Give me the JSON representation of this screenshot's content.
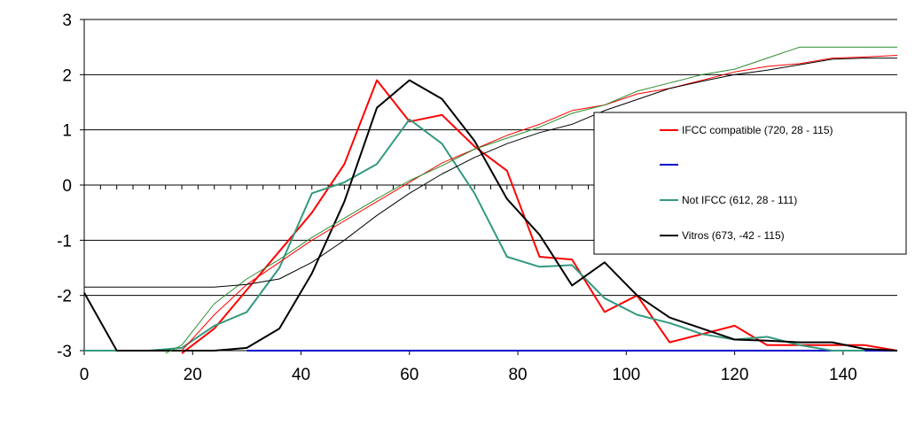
{
  "chart_data": {
    "type": "line",
    "title": "",
    "xlabel": "",
    "ylabel": "",
    "xlim": [
      0,
      150
    ],
    "ylim": [
      -3,
      3
    ],
    "x_ticks": [
      0,
      20,
      40,
      60,
      80,
      100,
      120,
      140
    ],
    "y_ticks": [
      -3,
      -2,
      -1,
      0,
      1,
      2,
      3
    ],
    "minor_x_tick_step": 3,
    "grid": "horizontal",
    "legend_position": "right",
    "series": [
      {
        "name": "IFCC compatible (720, 28 - 115)",
        "color": "#ff0000",
        "kind": "frequency",
        "points": [
          [
            18,
            -3.05
          ],
          [
            24,
            -2.6
          ],
          [
            30,
            -1.9
          ],
          [
            36,
            -1.2
          ],
          [
            42,
            -0.5
          ],
          [
            48,
            0.38
          ],
          [
            54,
            1.9
          ],
          [
            60,
            1.15
          ],
          [
            66,
            1.27
          ],
          [
            72,
            0.7
          ],
          [
            78,
            0.26
          ],
          [
            84,
            -1.3
          ],
          [
            90,
            -1.35
          ],
          [
            96,
            -2.3
          ],
          [
            102,
            -2.0
          ],
          [
            108,
            -2.85
          ],
          [
            114,
            -2.7
          ],
          [
            120,
            -2.55
          ],
          [
            126,
            -2.9
          ],
          [
            132,
            -2.9
          ],
          [
            138,
            -2.9
          ],
          [
            144,
            -2.9
          ],
          [
            150,
            -3.0
          ]
        ]
      },
      {
        "name": "",
        "color": "#0000cc",
        "kind": "frequency",
        "points": [
          [
            30,
            -3.0
          ],
          [
            150,
            -3.0
          ]
        ]
      },
      {
        "name": "Not IFCC (612, 28 - 111)",
        "color": "#339980",
        "kind": "frequency",
        "points": [
          [
            0,
            -3.0
          ],
          [
            12,
            -3.0
          ],
          [
            18,
            -2.95
          ],
          [
            24,
            -2.55
          ],
          [
            30,
            -2.3
          ],
          [
            36,
            -1.5
          ],
          [
            42,
            -0.15
          ],
          [
            48,
            0.05
          ],
          [
            54,
            0.38
          ],
          [
            60,
            1.19
          ],
          [
            66,
            0.75
          ],
          [
            72,
            -0.15
          ],
          [
            78,
            -1.3
          ],
          [
            84,
            -1.48
          ],
          [
            90,
            -1.45
          ],
          [
            96,
            -2.05
          ],
          [
            102,
            -2.35
          ],
          [
            108,
            -2.5
          ],
          [
            114,
            -2.7
          ],
          [
            120,
            -2.8
          ],
          [
            126,
            -2.75
          ],
          [
            132,
            -2.9
          ],
          [
            138,
            -3.0
          ],
          [
            144,
            -3.0
          ]
        ]
      },
      {
        "name": "Vitros (673, -42 - 115)",
        "color": "#000000",
        "kind": "frequency",
        "points": [
          [
            0,
            -1.95
          ],
          [
            6,
            -3.0
          ],
          [
            24,
            -3.0
          ],
          [
            30,
            -2.95
          ],
          [
            36,
            -2.6
          ],
          [
            42,
            -1.6
          ],
          [
            48,
            -0.3
          ],
          [
            54,
            1.4
          ],
          [
            60,
            1.9
          ],
          [
            66,
            1.56
          ],
          [
            72,
            0.8
          ],
          [
            78,
            -0.25
          ],
          [
            84,
            -0.9
          ],
          [
            90,
            -1.82
          ],
          [
            96,
            -1.4
          ],
          [
            102,
            -2.0
          ],
          [
            108,
            -2.4
          ],
          [
            114,
            -2.6
          ],
          [
            120,
            -2.8
          ],
          [
            126,
            -2.82
          ],
          [
            132,
            -2.85
          ],
          [
            138,
            -2.85
          ],
          [
            144,
            -2.97
          ],
          [
            150,
            -3.0
          ]
        ]
      },
      {
        "name": "",
        "color": "#ff0000",
        "kind": "cumulative",
        "points": [
          [
            18,
            -3.0
          ],
          [
            24,
            -2.35
          ],
          [
            30,
            -1.8
          ],
          [
            36,
            -1.4
          ],
          [
            42,
            -1.0
          ],
          [
            48,
            -0.65
          ],
          [
            54,
            -0.3
          ],
          [
            60,
            0.05
          ],
          [
            66,
            0.4
          ],
          [
            72,
            0.65
          ],
          [
            78,
            0.9
          ],
          [
            84,
            1.1
          ],
          [
            90,
            1.35
          ],
          [
            96,
            1.45
          ],
          [
            102,
            1.65
          ],
          [
            108,
            1.75
          ],
          [
            114,
            1.9
          ],
          [
            120,
            2.05
          ],
          [
            126,
            2.15
          ],
          [
            132,
            2.2
          ],
          [
            138,
            2.3
          ],
          [
            144,
            2.32
          ],
          [
            150,
            2.35
          ]
        ]
      },
      {
        "name": "",
        "color": "#2e8b2e",
        "kind": "cumulative",
        "points": [
          [
            15,
            -3.05
          ],
          [
            18,
            -2.9
          ],
          [
            24,
            -2.15
          ],
          [
            30,
            -1.7
          ],
          [
            36,
            -1.35
          ],
          [
            42,
            -0.95
          ],
          [
            48,
            -0.6
          ],
          [
            54,
            -0.25
          ],
          [
            60,
            0.08
          ],
          [
            66,
            0.35
          ],
          [
            72,
            0.65
          ],
          [
            78,
            0.85
          ],
          [
            84,
            1.05
          ],
          [
            90,
            1.3
          ],
          [
            96,
            1.45
          ],
          [
            102,
            1.7
          ],
          [
            108,
            1.85
          ],
          [
            114,
            2.0
          ],
          [
            120,
            2.1
          ],
          [
            126,
            2.3
          ],
          [
            132,
            2.5
          ],
          [
            138,
            2.5
          ],
          [
            144,
            2.5
          ],
          [
            150,
            2.5
          ]
        ]
      },
      {
        "name": "",
        "color": "#000000",
        "kind": "cumulative",
        "points": [
          [
            0,
            -1.85
          ],
          [
            24,
            -1.85
          ],
          [
            30,
            -1.8
          ],
          [
            36,
            -1.7
          ],
          [
            42,
            -1.4
          ],
          [
            48,
            -1.0
          ],
          [
            54,
            -0.55
          ],
          [
            60,
            -0.15
          ],
          [
            66,
            0.2
          ],
          [
            72,
            0.5
          ],
          [
            78,
            0.75
          ],
          [
            84,
            0.95
          ],
          [
            90,
            1.1
          ],
          [
            96,
            1.35
          ],
          [
            102,
            1.55
          ],
          [
            108,
            1.75
          ],
          [
            114,
            1.88
          ],
          [
            120,
            2.0
          ],
          [
            126,
            2.08
          ],
          [
            132,
            2.18
          ],
          [
            138,
            2.28
          ],
          [
            144,
            2.3
          ],
          [
            150,
            2.3
          ]
        ]
      }
    ]
  }
}
